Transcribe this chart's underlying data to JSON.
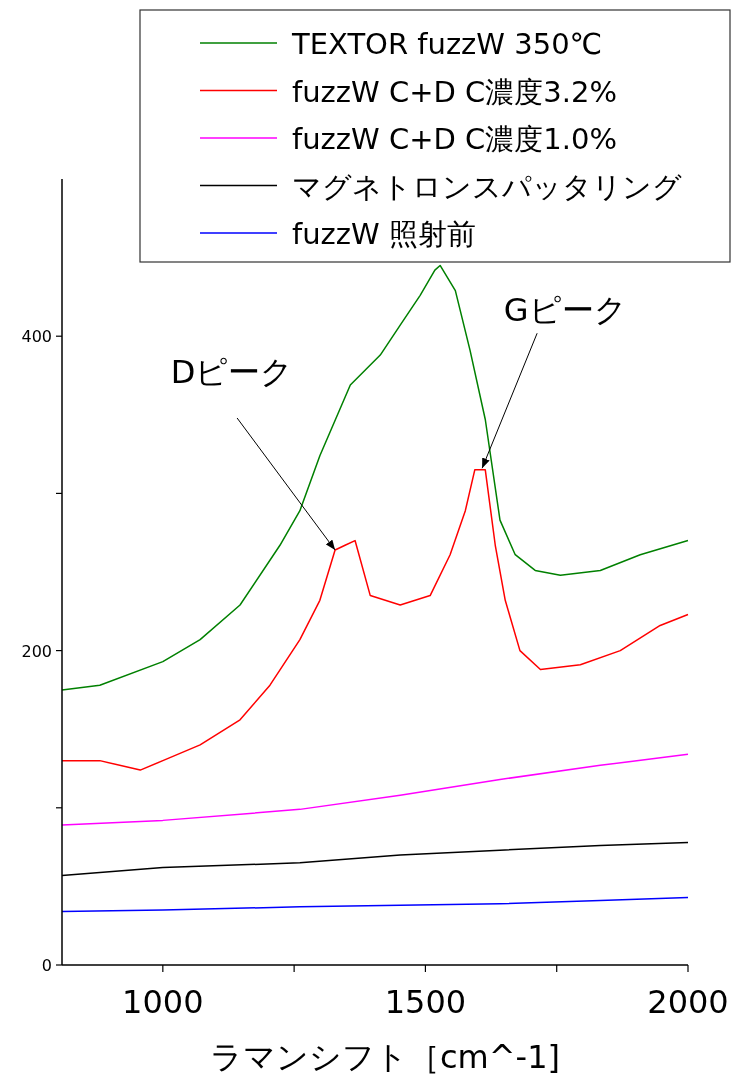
{
  "chart_data": {
    "type": "line",
    "xlabel": "ラマンシフト［cm^-1]",
    "xlim": [
      808,
      2000
    ],
    "xticks": [
      1000,
      {
        "value": 1250,
        "label": null
      },
      1500,
      {
        "value": 1750,
        "label": null
      },
      2000
    ],
    "ylim": [
      0,
      500
    ],
    "yticks": [
      0,
      {
        "value": 100,
        "label": null
      },
      200,
      {
        "value": 300,
        "label": null
      },
      400
    ],
    "grid": false,
    "legend": "top right",
    "marker": "none",
    "line_style": "solid",
    "annotations": [
      {
        "text": "Dピーク",
        "x": 1328,
        "y": 264
      },
      {
        "text": "Gピーク",
        "x": 1608,
        "y": 316
      }
    ],
    "series": [
      {
        "name": "TEXTOR fuzzW 350℃",
        "color": "#008000",
        "x": [
          808,
          880,
          1000,
          1071,
          1147,
          1223,
          1261,
          1299,
          1357,
          1414,
          1452,
          1490,
          1518,
          1528,
          1557,
          1585,
          1614,
          1642,
          1671,
          1709,
          1757,
          1833,
          1909,
          2000
        ],
        "values": [
          175,
          178,
          193,
          207,
          229,
          267,
          289,
          324,
          369,
          388,
          407,
          426,
          442,
          445,
          429,
          391,
          347,
          283,
          261,
          251,
          248,
          251,
          261,
          270
        ]
      },
      {
        "name": "fuzzW C+D C濃度3.2%",
        "color": "#ff0000",
        "x": [
          808,
          880,
          957,
          1000,
          1071,
          1147,
          1204,
          1261,
          1299,
          1328,
          1347,
          1366,
          1395,
          1452,
          1509,
          1547,
          1576,
          1594,
          1614,
          1633,
          1652,
          1680,
          1719,
          1795,
          1871,
          1947,
          2000
        ],
        "values": [
          130,
          130,
          124,
          130,
          140,
          156,
          178,
          207,
          232,
          264,
          267,
          270,
          235,
          229,
          235,
          261,
          289,
          315,
          315,
          267,
          232,
          200,
          188,
          191,
          200,
          216,
          223
        ]
      },
      {
        "name": "fuzzW C+D C濃度1.0%",
        "color": "#ff00ff",
        "x": [
          808,
          1000,
          1261,
          1452,
          1642,
          1833,
          2000
        ],
        "values": [
          89,
          92,
          99,
          108,
          118,
          127,
          134
        ]
      },
      {
        "name": "マグネトロンスパッタリング",
        "color": "#000000",
        "x": [
          808,
          1000,
          1261,
          1452,
          1642,
          1833,
          2000
        ],
        "values": [
          57,
          62,
          65,
          70,
          73,
          76,
          78
        ]
      },
      {
        "name": "fuzzW 照射前",
        "color": "#0000ff",
        "x": [
          808,
          1000,
          1261,
          1452,
          1642,
          1833,
          2000
        ],
        "values": [
          34,
          35,
          37,
          38,
          39,
          41,
          43
        ]
      }
    ]
  }
}
